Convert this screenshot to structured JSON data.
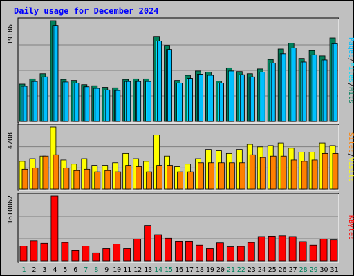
{
  "chart_data": {
    "title": "Daily usage for December 2024",
    "type": "bar",
    "colors": {
      "background": "#c0c0c0",
      "title": "#0000ff",
      "hits": "#00805c",
      "files": "#00e0ff",
      "pages": "#00c0ff",
      "visits": "#ffff00",
      "sites": "#ff8000",
      "kbytes": "#ff0000",
      "weekend_day": "#00805c",
      "weekday": "#000000"
    },
    "x_labels": [
      "1",
      "2",
      "3",
      "4",
      "5",
      "6",
      "7",
      "8",
      "9",
      "10",
      "11",
      "12",
      "13",
      "14",
      "15",
      "16",
      "17",
      "18",
      "19",
      "20",
      "21",
      "22",
      "23",
      "24",
      "25",
      "26",
      "27",
      "28",
      "29",
      "30",
      "31"
    ],
    "weekend_days": [
      1,
      7,
      8,
      14,
      15,
      21,
      22,
      28,
      29
    ],
    "panels": [
      {
        "name": "hits-files-pages",
        "ymax_label": "19186",
        "ymax": 19186,
        "legend": [
          "Pages",
          "/",
          "Files",
          "/",
          "Hits"
        ],
        "series": [
          {
            "name": "Hits",
            "values": [
              7100,
              8100,
              9100,
              19186,
              8000,
              7800,
              7000,
              6800,
              6500,
              6400,
              8000,
              8100,
              8100,
              16200,
              14500,
              7800,
              8800,
              9600,
              9400,
              7700,
              10200,
              9500,
              9100,
              10000,
              11800,
              13800,
              14900,
              12000,
              13500,
              12500,
              15900
            ]
          },
          {
            "name": "Files",
            "values": [
              6700,
              7600,
              8500,
              18300,
              7500,
              7300,
              6600,
              6300,
              6000,
              5900,
              7600,
              7600,
              7600,
              15300,
              13700,
              7300,
              8200,
              9000,
              8800,
              7300,
              9600,
              8900,
              8500,
              9400,
              11100,
              12900,
              14000,
              11300,
              12700,
              11700,
              14800
            ]
          },
          {
            "name": "Pages",
            "values": [
              6700,
              7600,
              8500,
              18300,
              7500,
              7300,
              6600,
              6300,
              6000,
              5900,
              7600,
              7600,
              7600,
              15300,
              13700,
              7300,
              8200,
              9000,
              8800,
              7300,
              9600,
              8900,
              8500,
              9400,
              11100,
              12900,
              14000,
              11300,
              12700,
              11700,
              14800
            ]
          }
        ]
      },
      {
        "name": "visits-sites",
        "ymax_label": "4708",
        "ymax": 4708,
        "legend": [
          "Sites",
          "/",
          "Visits"
        ],
        "series": [
          {
            "name": "Visits",
            "values": [
              2100,
              2300,
              2500,
              4708,
              2200,
              1900,
              2300,
              1800,
              1800,
              2000,
              2700,
              2300,
              2100,
              4100,
              2500,
              1700,
              1900,
              2300,
              3000,
              2900,
              2700,
              3000,
              3400,
              3200,
              3300,
              3500,
              3100,
              2800,
              2800,
              3500,
              3300
            ]
          },
          {
            "name": "Sites",
            "values": [
              1500,
              1600,
              2500,
              2600,
              1600,
              1400,
              1500,
              1300,
              1400,
              1300,
              1800,
              1700,
              1300,
              1800,
              1800,
              1300,
              1300,
              2000,
              2000,
              2000,
              2000,
              2000,
              2600,
              2400,
              2500,
              2500,
              2200,
              2100,
              2200,
              2700,
              2700
            ]
          }
        ]
      },
      {
        "name": "kbytes",
        "ymax_label": "1610062",
        "ymax": 1610062,
        "legend": [
          "KBytes"
        ],
        "series": [
          {
            "name": "KBytes",
            "values": [
              370000,
              500000,
              440000,
              1610062,
              460000,
              250000,
              370000,
              200000,
              300000,
              420000,
              300000,
              540000,
              880000,
              650000,
              560000,
              490000,
              490000,
              390000,
              300000,
              450000,
              350000,
              360000,
              460000,
              600000,
              610000,
              620000,
              600000,
              480000,
              390000,
              540000,
              520000
            ]
          }
        ]
      }
    ]
  }
}
